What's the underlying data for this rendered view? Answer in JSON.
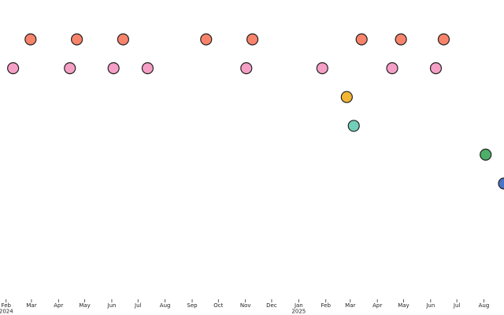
{
  "chart_data": {
    "type": "timeline",
    "xlim": [
      "2024-01-25",
      "2025-08-24"
    ],
    "xticks": [
      {
        "value": "2024-02-01",
        "label": "Feb 2024"
      },
      {
        "value": "2024-03-01",
        "label": "Mar"
      },
      {
        "value": "2024-04-01",
        "label": "Apr"
      },
      {
        "value": "2024-05-01",
        "label": "May"
      },
      {
        "value": "2024-06-01",
        "label": "Jun"
      },
      {
        "value": "2024-07-01",
        "label": "Jul"
      },
      {
        "value": "2024-08-01",
        "label": "Aug"
      },
      {
        "value": "2024-09-01",
        "label": "Sep"
      },
      {
        "value": "2024-10-01",
        "label": "Oct"
      },
      {
        "value": "2024-11-01",
        "label": "Nov"
      },
      {
        "value": "2024-12-01",
        "label": "Dec"
      },
      {
        "value": "2025-01-01",
        "label": "Jan 2025"
      },
      {
        "value": "2025-02-01",
        "label": "Feb"
      },
      {
        "value": "2025-03-01",
        "label": "Mar"
      },
      {
        "value": "2025-04-01",
        "label": "Apr"
      },
      {
        "value": "2025-05-01",
        "label": "May"
      },
      {
        "value": "2025-06-01",
        "label": "Jun"
      },
      {
        "value": "2025-07-01",
        "label": "Jul"
      },
      {
        "value": "2025-08-01",
        "label": "Aug"
      }
    ],
    "series": [
      {
        "color": "#f8836b",
        "x": [
          "2024-02-29",
          "2024-04-22",
          "2024-06-14",
          "2024-09-17",
          "2024-11-09",
          "2025-03-14",
          "2025-04-28",
          "2025-06-16"
        ]
      },
      {
        "color": "#f59fc6",
        "x": [
          "2024-02-09",
          "2024-04-14",
          "2024-06-03",
          "2024-07-12",
          "2024-11-02",
          "2025-01-28",
          "2025-04-18",
          "2025-06-07"
        ]
      },
      {
        "color": "#f2b534",
        "x": [
          "2025-02-25"
        ]
      },
      {
        "color": "#71cfb9",
        "x": [
          "2025-03-05"
        ]
      },
      {
        "color": "#4dae68",
        "x": [
          "2025-08-03"
        ]
      },
      {
        "color": "#4b73c6",
        "x": [
          "2025-08-24"
        ]
      }
    ]
  }
}
